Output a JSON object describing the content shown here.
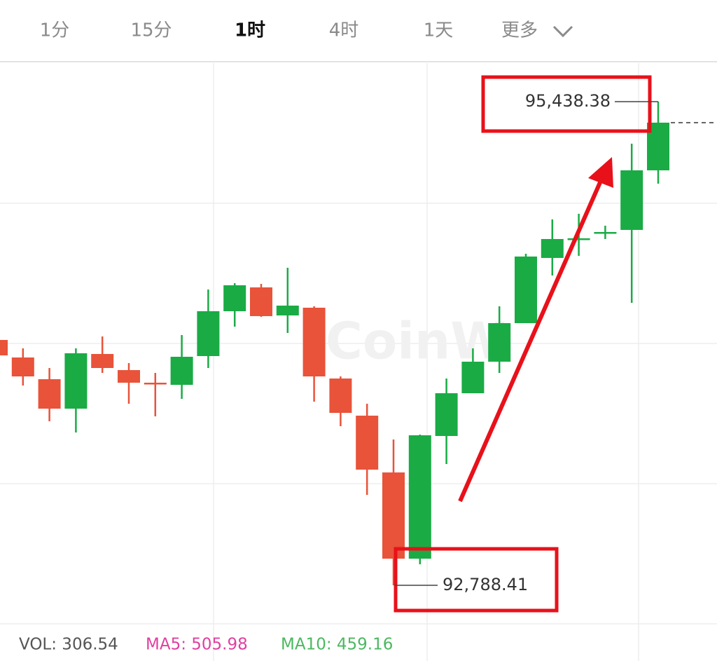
{
  "tabs": [
    {
      "label": "1分",
      "active": false
    },
    {
      "label": "15分",
      "active": false
    },
    {
      "label": "1时",
      "active": true
    },
    {
      "label": "4时",
      "active": false
    },
    {
      "label": "1天",
      "active": false
    },
    {
      "label": "更多",
      "active": false
    }
  ],
  "chart_data": {
    "type": "candlestick",
    "watermark": "CoinW",
    "up_color": "#1aab45",
    "down_color": "#e8533a",
    "ylim": [
      92577.2,
      95649.6
    ],
    "candles": [
      {
        "open": 94132.6,
        "high": 94132.6,
        "low": 94048.1,
        "close": 94048.1
      },
      {
        "open": 94036.6,
        "high": 94086.5,
        "low": 93883.0,
        "close": 93932.9
      },
      {
        "open": 93917.6,
        "high": 93979.0,
        "low": 93687.1,
        "close": 93756.3
      },
      {
        "open": 93756.3,
        "high": 94086.5,
        "low": 93625.7,
        "close": 94059.7
      },
      {
        "open": 94055.8,
        "high": 94151.8,
        "low": 93952.1,
        "close": 93979.0
      },
      {
        "open": 93967.5,
        "high": 94005.9,
        "low": 93783.1,
        "close": 93898.4
      },
      {
        "open": 93898.4,
        "high": 93952.1,
        "low": 93714.0,
        "close": 93890.7
      },
      {
        "open": 93886.8,
        "high": 94159.5,
        "low": 93810.0,
        "close": 94040.5
      },
      {
        "open": 94044.3,
        "high": 94409.1,
        "low": 93979.0,
        "close": 94290.1
      },
      {
        "open": 94290.1,
        "high": 94443.7,
        "low": 94205.6,
        "close": 94432.2
      },
      {
        "open": 94420.7,
        "high": 94439.9,
        "low": 94259.4,
        "close": 94263.2
      },
      {
        "open": 94267.0,
        "high": 94528.2,
        "low": 94171.0,
        "close": 94320.8
      },
      {
        "open": 94309.3,
        "high": 94317.0,
        "low": 93794.7,
        "close": 93932.9
      },
      {
        "open": 93921.4,
        "high": 93932.9,
        "low": 93660.2,
        "close": 93733.2
      },
      {
        "open": 93717.9,
        "high": 93783.1,
        "low": 93283.9,
        "close": 93422.1
      },
      {
        "open": 93406.8,
        "high": 93587.3,
        "low": 92788.41,
        "close": 92934.4
      },
      {
        "open": 92934.4,
        "high": 93614.2,
        "low": 92903.7,
        "close": 93610.3
      },
      {
        "open": 93606.5,
        "high": 93921.4,
        "low": 93452.9,
        "close": 93840.8
      },
      {
        "open": 93840.8,
        "high": 94086.5,
        "low": 93840.8,
        "close": 94013.6
      },
      {
        "open": 94013.6,
        "high": 94317.0,
        "low": 93952.1,
        "close": 94224.8
      },
      {
        "open": 94224.8,
        "high": 94605.0,
        "low": 94224.8,
        "close": 94589.7
      },
      {
        "open": 94582.0,
        "high": 94793.2,
        "low": 94486.0,
        "close": 94685.7
      },
      {
        "open": 94681.8,
        "high": 94823.9,
        "low": 94593.5,
        "close": 94689.5
      },
      {
        "open": 94716.4,
        "high": 94758.6,
        "low": 94685.7,
        "close": 94724.1
      },
      {
        "open": 94735.6,
        "high": 95208.0,
        "low": 94336.2,
        "close": 95062.0
      },
      {
        "open": 95062.0,
        "high": 95438.38,
        "low": 94989.1,
        "close": 95323.2
      }
    ],
    "annotations": [
      {
        "value": 95438.38,
        "label": "95,438.38"
      },
      {
        "value": 92788.41,
        "label": "92,788.41"
      }
    ]
  },
  "indicators": [
    {
      "text": "VOL: 306.54",
      "color": "#555555"
    },
    {
      "text": "MA5: 505.98",
      "color": "#e040a0"
    },
    {
      "text": "MA10: 459.16",
      "color": "#4cb860"
    }
  ]
}
